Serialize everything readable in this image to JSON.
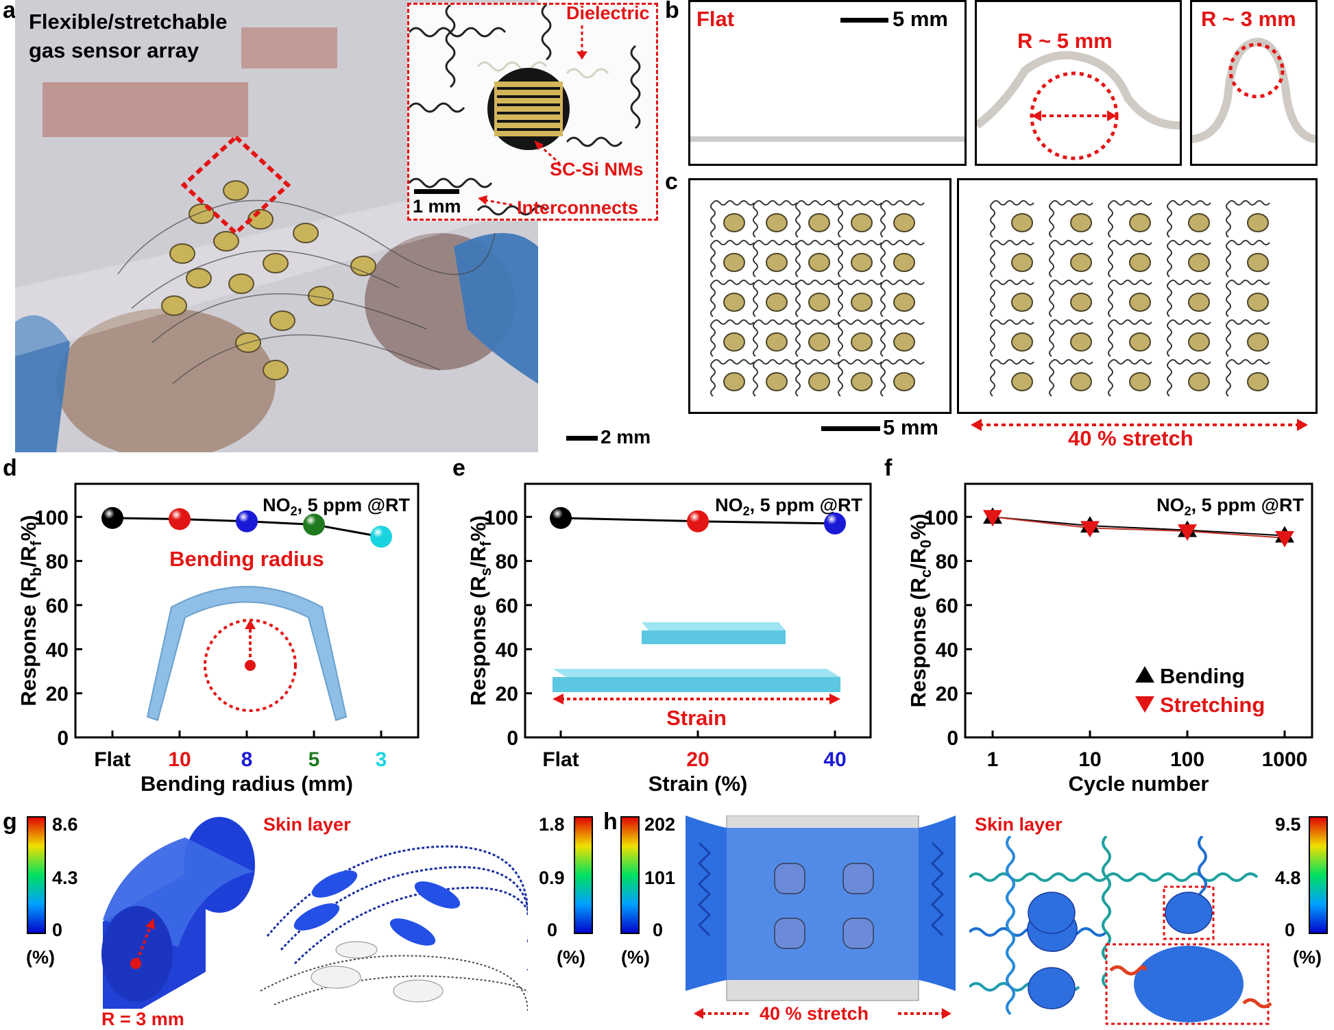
{
  "panel_labels": {
    "a": "a",
    "b": "b",
    "c": "c",
    "d": "d",
    "e": "e",
    "f": "f",
    "g": "g",
    "h": "h"
  },
  "panel_a": {
    "title_line1": "Flexible/stretchable",
    "title_line2": "gas sensor array",
    "inset_labels": {
      "dielectric": "Dielectric",
      "scsi": "SC-Si NMs",
      "interconnects": "Interconnects",
      "scale": "1 mm"
    },
    "scale": "2 mm",
    "colors": {
      "photo_bg": "#c9c7cf",
      "glove": "#3f78b8",
      "pad": "#c9b35a"
    }
  },
  "panel_b": {
    "flat_label": "Flat",
    "scale": "5 mm",
    "r5_label": "R ~ 5 mm",
    "r3_label": "R ~ 3 mm"
  },
  "panel_c": {
    "scale": "5 mm",
    "stretch_label": "40 % stretch"
  },
  "chart_data": [
    {
      "id": "d",
      "type": "scatter",
      "categories": [
        "Flat",
        "10",
        "8",
        "5",
        "3"
      ],
      "category_colors": [
        "#000000",
        "#e31414",
        "#1a1ad6",
        "#1f7a1f",
        "#19d4e0"
      ],
      "values": [
        99.5,
        99,
        98,
        96.5,
        91
      ],
      "ylabel_main": "Response (R",
      "ylabel_sub": "b",
      "ylabel_mid": "/R",
      "ylabel_sub2": "f",
      "ylabel_end": "%)",
      "xlabel": "Bending radius (mm)",
      "ylim": [
        0,
        115
      ],
      "yticks": [
        0,
        20,
        40,
        60,
        80,
        100
      ],
      "annotation": "NO",
      "annotation_sub": "2",
      "annotation_rest": ", 5 ppm @RT",
      "inset_label": "Bending radius"
    },
    {
      "id": "e",
      "type": "scatter",
      "categories": [
        "Flat",
        "20",
        "40"
      ],
      "category_colors": [
        "#000000",
        "#e31414",
        "#1a1ad6"
      ],
      "values": [
        99.5,
        98,
        97
      ],
      "ylabel_main": "Response (R",
      "ylabel_sub": "s",
      "ylabel_mid": "/R",
      "ylabel_sub2": "f",
      "ylabel_end": "%)",
      "xlabel": "Strain (%)",
      "ylim": [
        0,
        115
      ],
      "yticks": [
        0,
        20,
        40,
        60,
        80,
        100
      ],
      "annotation": "NO",
      "annotation_sub": "2",
      "annotation_rest": ", 5 ppm @RT",
      "inset_label": "Strain"
    },
    {
      "id": "f",
      "type": "line",
      "categories": [
        "1",
        "10",
        "100",
        "1000"
      ],
      "x_scale": "log",
      "series": [
        {
          "name": "Bending",
          "values": [
            100,
            96,
            94,
            91.5
          ],
          "color": "#000000",
          "marker": "triangle-up"
        },
        {
          "name": "Stretching",
          "values": [
            100,
            95,
            93.5,
            90.5
          ],
          "color": "#e31414",
          "marker": "triangle-down"
        }
      ],
      "ylabel_main": "Response (R",
      "ylabel_sub": "c",
      "ylabel_mid": "/R",
      "ylabel_sub2": "0",
      "ylabel_end": "%)",
      "xlabel": "Cycle number",
      "ylim": [
        0,
        115
      ],
      "yticks": [
        0,
        20,
        40,
        60,
        80,
        100
      ],
      "annotation": "NO",
      "annotation_sub": "2",
      "annotation_rest": ", 5 ppm @RT",
      "legend_position": "bottom-right"
    }
  ],
  "panel_g": {
    "cb1_ticks": [
      "8.6",
      "4.3",
      "0"
    ],
    "cb1_unit": "(%)",
    "radius_label": "R = 3 mm",
    "skin_label": "Skin layer",
    "cb2_ticks": [
      "1.8",
      "0.9",
      "0"
    ],
    "cb2_unit": "(%)"
  },
  "panel_h": {
    "cb1_ticks": [
      "202",
      "101",
      "0"
    ],
    "cb1_unit": "(%)",
    "stretch_label": "40 % stretch",
    "skin_label": "Skin layer",
    "cb2_ticks": [
      "9.5",
      "4.8",
      "0"
    ],
    "cb2_unit": "(%)"
  }
}
